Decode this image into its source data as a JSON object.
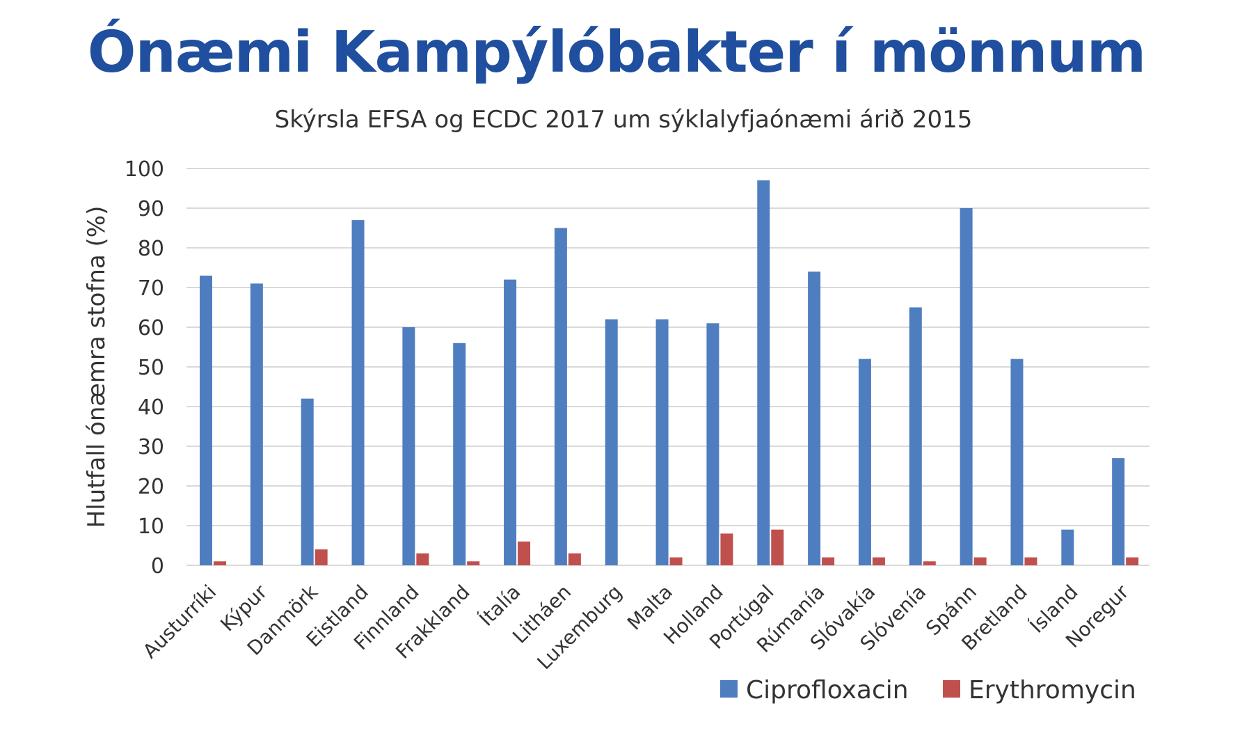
{
  "chart_data": {
    "type": "bar",
    "title": "Ónæmi Kampýlóbakter í mönnum",
    "subtitle": "Skýrsla EFSA og ECDC 2017 um sýklalyfjaónæmi árið 2015",
    "xlabel": "",
    "ylabel": "Hlutfall ónæmra stofna (%)",
    "ylim": [
      0,
      100
    ],
    "yticks": [
      0,
      10,
      20,
      30,
      40,
      50,
      60,
      70,
      80,
      90,
      100
    ],
    "grid": true,
    "legend_position": "bottom-right",
    "categories": [
      "Austurríki",
      "Kýpur",
      "Danmörk",
      "Eistland",
      "Finnland",
      "Frakkland",
      "Ítalía",
      "Litháen",
      "Luxemburg",
      "Malta",
      "Holland",
      "Portúgal",
      "Rúmanía",
      "Slóvakía",
      "Slóvenía",
      "Spánn",
      "Bretland",
      "Ísland",
      "Noregur"
    ],
    "series": [
      {
        "name": "Ciprofloxacin",
        "color": "#4f7ec0",
        "values": [
          73,
          71,
          42,
          87,
          60,
          56,
          72,
          85,
          62,
          62,
          61,
          97,
          74,
          52,
          65,
          90,
          52,
          9,
          27
        ]
      },
      {
        "name": "Erythromycin",
        "color": "#c0504d",
        "values": [
          1,
          0,
          4,
          0,
          3,
          1,
          6,
          3,
          0,
          2,
          8,
          9,
          2,
          2,
          1,
          2,
          2,
          0,
          2
        ]
      }
    ]
  }
}
